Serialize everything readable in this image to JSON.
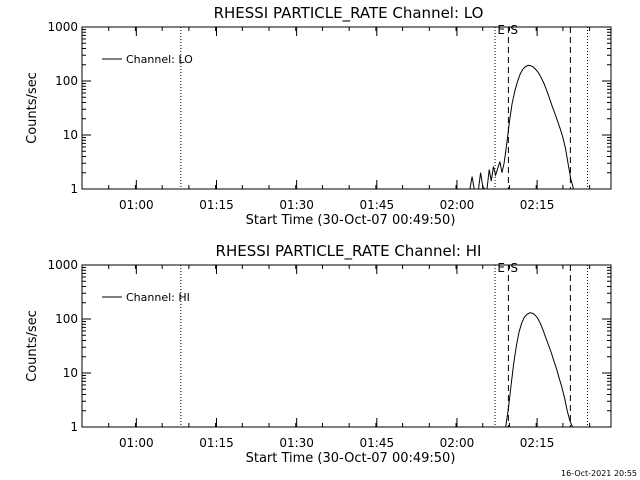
{
  "chart_data": [
    {
      "type": "line",
      "title": "RHESSI PARTICLE_RATE Channel: LO",
      "xlabel": "Start Time (30-Oct-07 00:49:50)",
      "ylabel": "Counts/sec",
      "yscale": "log",
      "ylim": [
        1,
        1000
      ],
      "y_tick_labels": [
        "1",
        "10",
        "100",
        "1000"
      ],
      "x_tick_labels": [
        "01:00",
        "01:15",
        "01:30",
        "01:45",
        "02:00",
        "02:15"
      ],
      "xlim_minutes_after_start": [
        0,
        99
      ],
      "legend": {
        "position": "top-left",
        "entries": [
          "Channel: LO"
        ]
      },
      "marker_labels": [
        "E",
        "S"
      ],
      "dotted_lines_min": [
        18.5,
        77.3,
        94.6
      ],
      "dashed_lines_min": [
        79.8,
        91.4
      ],
      "series": [
        {
          "name": "Channel: LO",
          "x": [
            72.6,
            73.0,
            73.4,
            73.8,
            74.2,
            74.6,
            75.0,
            75.4,
            75.8,
            76.2,
            76.6,
            77.0,
            77.4,
            77.8,
            78.2,
            78.6,
            79.0,
            79.5,
            80.0,
            80.5,
            81.0,
            81.5,
            82.0,
            82.5,
            83.0,
            83.5,
            84.0,
            84.5,
            85.0,
            85.5,
            86.0,
            86.5,
            87.0,
            87.5,
            88.0,
            88.5,
            89.0,
            89.5,
            90.0,
            90.5,
            91.0,
            91.5,
            92.0,
            92.5,
            93.0
          ],
          "values": [
            1.0,
            1.7,
            1.0,
            1.0,
            1.0,
            2.0,
            1.1,
            1.0,
            1.0,
            2.3,
            1.4,
            2.6,
            1.8,
            2.4,
            3.2,
            2.0,
            3.0,
            7,
            18,
            38,
            65,
            98,
            135,
            165,
            185,
            195,
            192,
            180,
            160,
            138,
            112,
            88,
            65,
            47,
            34,
            25,
            18,
            13,
            9,
            5.5,
            2.8,
            1.5,
            1.0,
            1.0,
            1.0
          ]
        }
      ]
    },
    {
      "type": "line",
      "title": "RHESSI PARTICLE_RATE Channel: HI",
      "xlabel": "Start Time (30-Oct-07 00:49:50)",
      "ylabel": "Counts/sec",
      "yscale": "log",
      "ylim": [
        1,
        1000
      ],
      "y_tick_labels": [
        "1",
        "10",
        "100",
        "1000"
      ],
      "x_tick_labels": [
        "01:00",
        "01:15",
        "01:30",
        "01:45",
        "02:00",
        "02:15"
      ],
      "xlim_minutes_after_start": [
        0,
        99
      ],
      "legend": {
        "position": "top-left",
        "entries": [
          "Channel: HI"
        ]
      },
      "marker_labels": [
        "E",
        "S"
      ],
      "dotted_lines_min": [
        18.5,
        77.3,
        94.6
      ],
      "dashed_lines_min": [
        79.8,
        91.4
      ],
      "series": [
        {
          "name": "Channel: HI",
          "x": [
            79.3,
            79.8,
            80.3,
            80.8,
            81.3,
            81.8,
            82.3,
            82.8,
            83.3,
            83.8,
            84.3,
            84.8,
            85.3,
            85.8,
            86.3,
            86.8,
            87.3,
            87.8,
            88.3,
            88.8,
            89.3,
            89.8,
            90.3,
            90.8,
            91.3,
            91.8,
            92.3
          ],
          "values": [
            1.0,
            2.2,
            6,
            15,
            32,
            58,
            85,
            108,
            122,
            130,
            128,
            118,
            102,
            82,
            62,
            45,
            33,
            24,
            17,
            12,
            8,
            5.5,
            3.5,
            2.0,
            1.3,
            1.0,
            1.0
          ]
        }
      ]
    }
  ],
  "footer": {
    "timestamp": "16-Oct-2021 20:55"
  }
}
